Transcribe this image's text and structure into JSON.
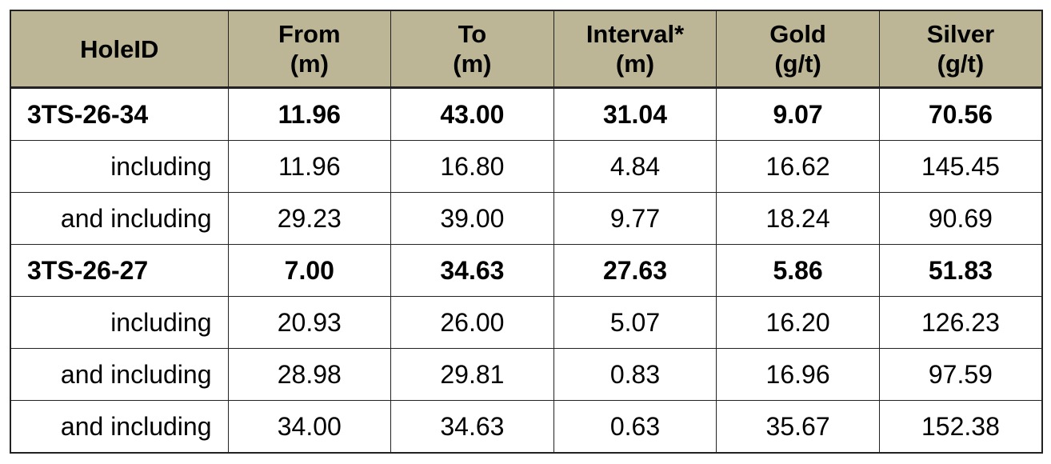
{
  "table": {
    "header": [
      [
        "HoleID"
      ],
      [
        "From",
        "(m)"
      ],
      [
        "To",
        "(m)"
      ],
      [
        "Interval*",
        "(m)"
      ],
      [
        "Gold",
        "(g/t)"
      ],
      [
        "Silver",
        "(g/t)"
      ]
    ],
    "rows": [
      {
        "bold": true,
        "cells": [
          "3TS-26-34",
          "11.96",
          "43.00",
          "31.04",
          "9.07",
          "70.56"
        ]
      },
      {
        "bold": false,
        "cells": [
          "including",
          "11.96",
          "16.80",
          "4.84",
          "16.62",
          "145.45"
        ]
      },
      {
        "bold": false,
        "cells": [
          "and including",
          "29.23",
          "39.00",
          "9.77",
          "18.24",
          "90.69"
        ]
      },
      {
        "bold": true,
        "cells": [
          "3TS-26-27",
          "7.00",
          "34.63",
          "27.63",
          "5.86",
          "51.83"
        ]
      },
      {
        "bold": false,
        "cells": [
          "including",
          "20.93",
          "26.00",
          "5.07",
          "16.20",
          "126.23"
        ]
      },
      {
        "bold": false,
        "cells": [
          "and including",
          "28.98",
          "29.81",
          "0.83",
          "16.96",
          "97.59"
        ]
      },
      {
        "bold": false,
        "cells": [
          "and including",
          "34.00",
          "34.63",
          "0.63",
          "35.67",
          "152.38"
        ]
      }
    ]
  }
}
